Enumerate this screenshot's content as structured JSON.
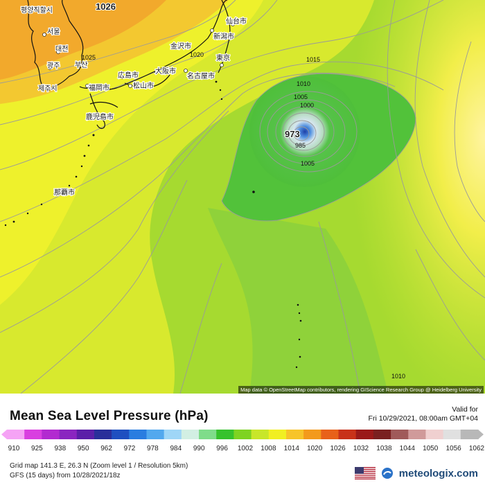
{
  "map": {
    "cities": [
      {
        "name": "평양직할시"
      },
      {
        "name": "서울"
      },
      {
        "name": "대전"
      },
      {
        "name": "광주"
      },
      {
        "name": "부산"
      },
      {
        "name": "제주시"
      },
      {
        "name": "福岡市"
      },
      {
        "name": "広島市"
      },
      {
        "name": "松山市"
      },
      {
        "name": "大阪市"
      },
      {
        "name": "金沢市"
      },
      {
        "name": "名古屋市"
      },
      {
        "name": "東京"
      },
      {
        "name": "新潟市"
      },
      {
        "name": "仙台市"
      },
      {
        "name": "鹿児島市"
      },
      {
        "name": "那覇市"
      }
    ],
    "isobars": {
      "high_center": "1026",
      "low_center": "973",
      "l1025": "1025",
      "l1020": "1020",
      "l1015": "1015",
      "l1010_a": "1010",
      "l1005_a": "1005",
      "l1000": "1000",
      "l985": "985",
      "l1005_b": "1005",
      "l1010_b": "1010"
    },
    "attribution": "Map data © OpenStreetMap contributors, rendering GIScience Research Group @ Heidelberg University"
  },
  "legend": {
    "title": "Mean Sea Level Pressure (hPa)",
    "valid_label": "Valid for",
    "valid_time": "Fri 10/29/2021, 08:00am GMT+04",
    "ticks": [
      "910",
      "925",
      "938",
      "950",
      "962",
      "972",
      "978",
      "984",
      "990",
      "996",
      "1002",
      "1008",
      "1014",
      "1020",
      "1026",
      "1032",
      "1038",
      "1044",
      "1050",
      "1056",
      "1062"
    ],
    "colors": [
      "#f5a3f5",
      "#d93fe0",
      "#b22ad0",
      "#8a25c0",
      "#5b1fa8",
      "#2a2f9a",
      "#1f4fc0",
      "#2a7de0",
      "#52a8ee",
      "#9fd6f7",
      "#d2efe3",
      "#7fdc8a",
      "#36c22c",
      "#7ed321",
      "#c8e62a",
      "#f1ef22",
      "#f7c42a",
      "#f39a1c",
      "#e8611a",
      "#c8321a",
      "#9a1a1a",
      "#7a2020",
      "#a05a5a",
      "#d09a9a",
      "#f0d0d0",
      "#e0e0e0",
      "#b8b8b8"
    ],
    "grid_info": "Grid map 141.3 E, 26.3 N (Zoom level 1 / Resolution 5km)",
    "model_info": "GFS (15 days) from  10/28/2021/18z",
    "brand": "meteologix.com"
  }
}
